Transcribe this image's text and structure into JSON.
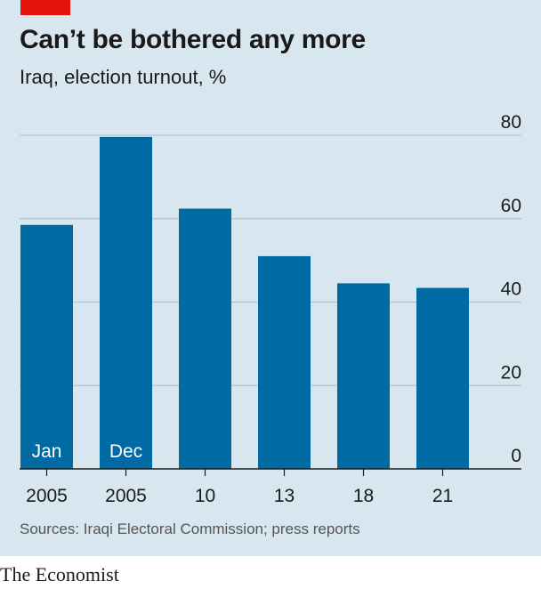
{
  "header": {
    "title": "Can’t be bothered any more",
    "subtitle": "Iraq, election turnout, %"
  },
  "footer": {
    "source": "Sources: Iraqi Electoral Commission; press reports",
    "brand": "The Economist"
  },
  "colors": {
    "background": "#d7e6ef",
    "bar": "#006ba2",
    "accent_red": "#e3120b",
    "gridline": "#b4c5d1",
    "axis": "#1a1a1a"
  },
  "chart_data": {
    "type": "bar",
    "categories": [
      "Jan 2005",
      "Dec 2005",
      "2010",
      "2013",
      "2018",
      "2021"
    ],
    "x_tick_labels": [
      "2005",
      "2005",
      "10",
      "13",
      "18",
      "21"
    ],
    "bar_inner_labels": [
      "Jan",
      "Dec",
      "",
      "",
      "",
      ""
    ],
    "values": [
      58.5,
      79.6,
      62.4,
      51,
      44.5,
      43.4
    ],
    "ylim": [
      0,
      80
    ],
    "y_ticks": [
      0,
      20,
      40,
      60,
      80
    ],
    "y_tick_labels": [
      "0",
      "20",
      "40",
      "60",
      "80"
    ],
    "y_axis_side": "right",
    "grid": true,
    "title": "Can’t be bothered any more",
    "ylabel": "Iraq, election turnout, %"
  }
}
